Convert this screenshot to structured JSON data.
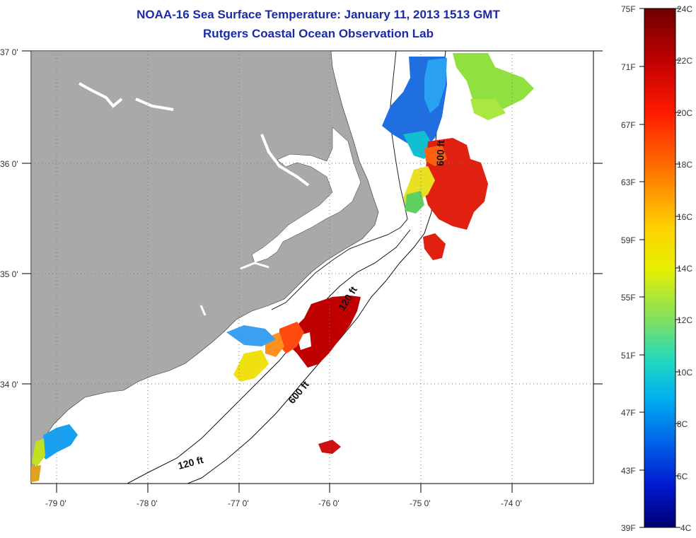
{
  "title": {
    "line1": "NOAA-16 Sea Surface Temperature:  January 11, 2013 1513 GMT",
    "line2": "Rutgers Coastal Ocean Observation Lab"
  },
  "axes": {
    "lat_labels": [
      "37 0'",
      "36 0'",
      "35 0'",
      "34 0'"
    ],
    "lon_labels": [
      "-79 0'",
      "-78 0'",
      "-77 0'",
      "-76 0'",
      "-75 0'",
      "-74 0'"
    ]
  },
  "isobaths": {
    "label_120_a": "120 ft",
    "label_120_b": "120 ft",
    "label_600_a": "600 ft",
    "label_600_b": "600 ft"
  },
  "colorbar": {
    "fahrenheit": [
      "75F",
      "71F",
      "67F",
      "63F",
      "59F",
      "55F",
      "51F",
      "47F",
      "43F",
      "39F"
    ],
    "celsius": [
      "24C",
      "22C",
      "20C",
      "18C",
      "16C",
      "14C",
      "12C",
      "10C",
      "8C",
      "6C",
      "4C"
    ]
  },
  "colors": {
    "land": "#a9a9a9",
    "title": "#1a2aa8",
    "scale": [
      "#7a0000",
      "#c00000",
      "#ff2000",
      "#ff8000",
      "#ffe000",
      "#c0f000",
      "#60e060",
      "#20d0c0",
      "#00a0f0",
      "#0050e0",
      "#0010c0",
      "#000080"
    ]
  }
}
